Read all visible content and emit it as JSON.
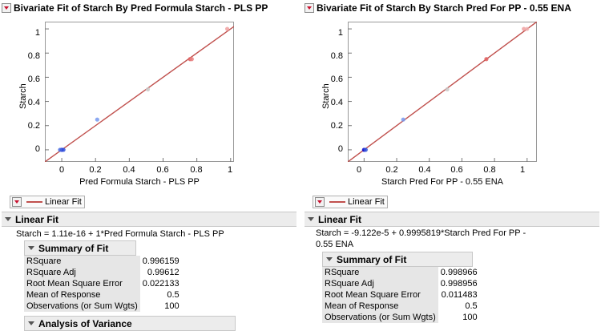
{
  "left": {
    "title": "Bivariate Fit of Starch By Pred Formula Starch - PLS PP",
    "y_label": "Starch",
    "x_label": "Pred Formula Starch - PLS PP",
    "y_ticks": [
      "1",
      "0.8",
      "0.6",
      "0.4",
      "0.2",
      "0"
    ],
    "x_ticks": [
      "0",
      "0.2",
      "0.4",
      "0.6",
      "0.8",
      "1"
    ],
    "legend_label": "Linear Fit",
    "section_title": "Linear Fit",
    "equation": [
      "Starch = 1.11e-16 + 1*Pred Formula Starch - PLS PP"
    ],
    "summary_title": "Summary of Fit",
    "summary_rows": [
      {
        "label": "RSquare",
        "value": "0.996159"
      },
      {
        "label": "RSquare Adj",
        "value": "0.99612"
      },
      {
        "label": "Root Mean Square Error",
        "value": "0.022133"
      },
      {
        "label": "Mean of Response",
        "value": "0.5"
      },
      {
        "label": "Observations (or Sum Wgts)",
        "value": "100"
      }
    ],
    "next_title": "Analysis of Variance"
  },
  "right": {
    "title": "Bivariate Fit of Starch By Starch Pred For PP - 0.55 ENA",
    "y_label": "Starch",
    "x_label": "Starch Pred For PP - 0.55 ENA",
    "y_ticks": [
      "1",
      "0.8",
      "0.6",
      "0.4",
      "0.2",
      "0"
    ],
    "x_ticks": [
      "0",
      "0.2",
      "0.4",
      "0.6",
      "0.8",
      "1"
    ],
    "legend_label": "Linear Fit",
    "section_title": "Linear Fit",
    "equation": [
      "Starch = -9.122e-5 + 0.9995819*Starch Pred For PP -",
      "0.55 ENA"
    ],
    "summary_title": "Summary of Fit",
    "summary_rows": [
      {
        "label": "RSquare",
        "value": "0.998966"
      },
      {
        "label": "RSquare Adj",
        "value": "0.998956"
      },
      {
        "label": "Root Mean Square Error",
        "value": "0.011483"
      },
      {
        "label": "Mean of Response",
        "value": "0.5"
      },
      {
        "label": "Observations (or Sum Wgts)",
        "value": "100"
      }
    ]
  },
  "chart_data": [
    {
      "type": "scatter",
      "title": "Bivariate Fit of Starch By Pred Formula Starch - PLS PP",
      "xlabel": "Pred Formula Starch - PLS PP",
      "ylabel": "Starch",
      "xlim": [
        -0.1,
        1.02
      ],
      "ylim": [
        -0.1,
        1.06
      ],
      "grid": false,
      "points": [
        {
          "x": 0.0,
          "y": 0.0,
          "color": "#0000cc"
        },
        {
          "x": 0.01,
          "y": 0.0,
          "color": "#3355dd"
        },
        {
          "x": -0.01,
          "y": 0.0,
          "color": "#4b6fe0"
        },
        {
          "x": 0.21,
          "y": 0.25,
          "color": "#7799ee"
        },
        {
          "x": 0.51,
          "y": 0.5,
          "color": "#c9c9c9"
        },
        {
          "x": 0.76,
          "y": 0.75,
          "color": "#e06060"
        },
        {
          "x": 0.77,
          "y": 0.75,
          "color": "#e88080"
        },
        {
          "x": 0.98,
          "y": 1.0,
          "color": "#f0a0a0"
        }
      ],
      "fit": {
        "intercept": 0,
        "slope": 1,
        "color": "#c0504d"
      }
    },
    {
      "type": "scatter",
      "title": "Bivariate Fit of Starch By Starch Pred For PP - 0.55 ENA",
      "xlabel": "Starch Pred For PP - 0.55 ENA",
      "ylabel": "Starch",
      "xlim": [
        -0.1,
        1.06
      ],
      "ylim": [
        -0.1,
        1.06
      ],
      "grid": false,
      "points": [
        {
          "x": 0.0,
          "y": 0.0,
          "color": "#0000cc"
        },
        {
          "x": 0.01,
          "y": 0.0,
          "color": "#3355dd"
        },
        {
          "x": 0.24,
          "y": 0.25,
          "color": "#7799ee"
        },
        {
          "x": 0.51,
          "y": 0.5,
          "color": "#c9c9c9"
        },
        {
          "x": 0.75,
          "y": 0.75,
          "color": "#e06060"
        },
        {
          "x": 0.98,
          "y": 1.0,
          "color": "#f0a0a0"
        },
        {
          "x": 1.0,
          "y": 1.0,
          "color": "#f0b0b0"
        }
      ],
      "fit": {
        "intercept": -9.122e-05,
        "slope": 0.9995819,
        "color": "#c0504d"
      }
    }
  ]
}
